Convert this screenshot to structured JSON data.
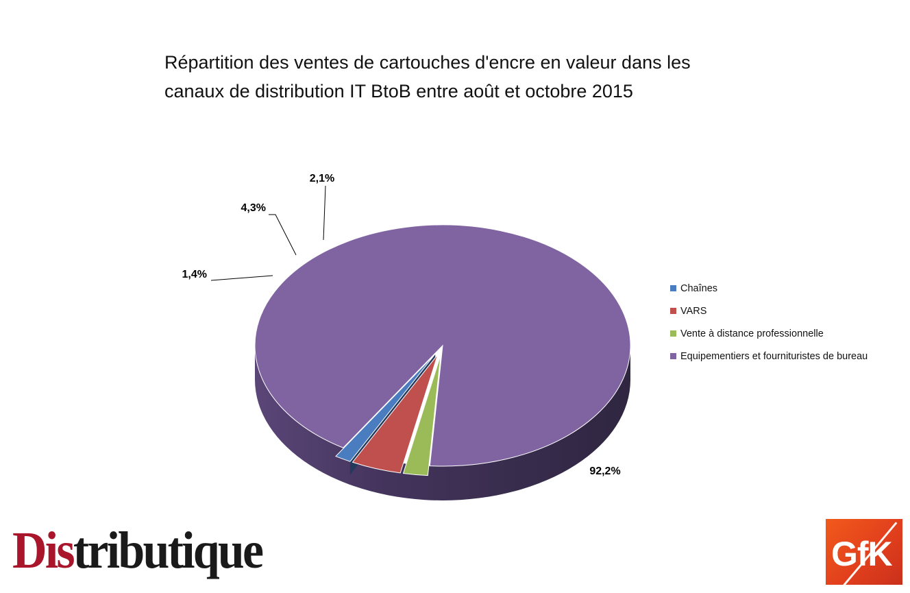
{
  "title_line1": "Répartition des ventes de cartouches d'encre en valeur dans les",
  "title_line2": "canaux de distribution IT BtoB entre août et octobre 2015",
  "chart_data": {
    "type": "pie",
    "title": "Répartition des ventes de cartouches d'encre en valeur dans les canaux de distribution IT BtoB entre août et octobre 2015",
    "categories": [
      "Chaînes",
      "VARS",
      "Vente à distance professionnelle",
      "Equipementiers et fournituristes de bureau"
    ],
    "values": [
      1.4,
      4.3,
      2.1,
      92.2
    ],
    "data_labels": [
      "1,4%",
      "4,3%",
      "2,1%",
      "92,2%"
    ],
    "colors": [
      "#4a7dbf",
      "#c0504d",
      "#9bbb59",
      "#8064a2"
    ],
    "legend_position": "right",
    "style": "3d-exploded"
  },
  "logos": {
    "distributique_part1": "Dis",
    "distributique_part2": "tributique",
    "gfk": "GfK"
  }
}
